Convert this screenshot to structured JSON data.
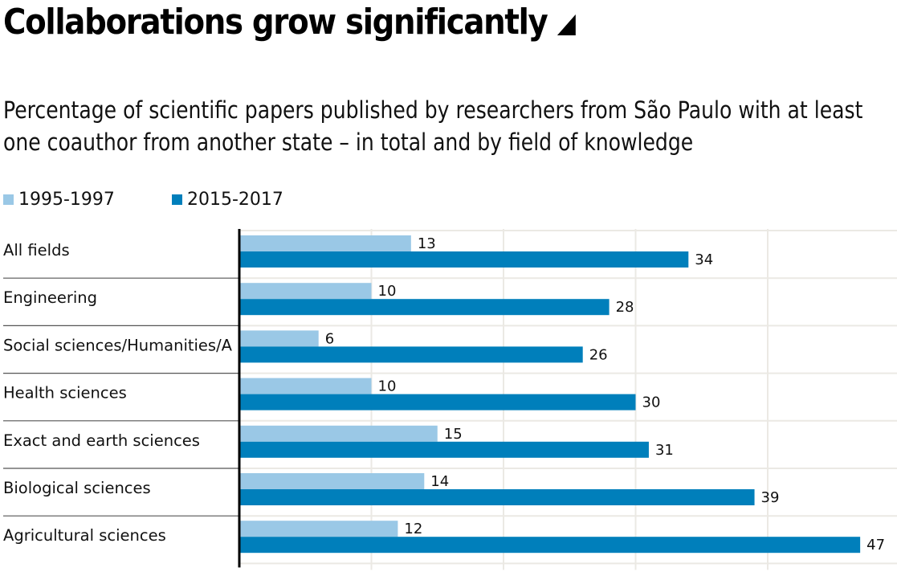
{
  "header": {
    "title": "Collaborations grow significantly",
    "subtitle": "Percentage of scientific papers published by researchers from São Paulo with at least one coauthor from another state – in total and by field of knowledge"
  },
  "colors": {
    "series_1995_1997": "#9ac8e6",
    "series_2015_2017": "#007fbb",
    "axis": "#000000",
    "grid": "#ebe9e4",
    "separator": "#555555"
  },
  "chart_data": {
    "type": "bar",
    "orientation": "horizontal",
    "title": "Collaborations grow significantly",
    "subtitle": "Percentage of scientific papers published by researchers from São Paulo with at least one coauthor from another state – in total and by field of knowledge",
    "xlabel": "",
    "ylabel": "",
    "xlim": [
      0,
      50
    ],
    "grid": true,
    "grid_step": 10,
    "legend_position": "top-left",
    "categories": [
      "All fields",
      "Engineering",
      "Social sciences/Humanities/Arts",
      "Health sciences",
      "Exact and earth sciences",
      "Biological sciences",
      "Agricultural sciences"
    ],
    "category_display": [
      "All fields",
      "Engineering",
      "Social sciences/Humanities/A",
      "Health sciences",
      "Exact and earth sciences",
      "Biological sciences",
      "Agricultural sciences"
    ],
    "series": [
      {
        "name": "1995-1997",
        "values": [
          13,
          10,
          6,
          10,
          15,
          14,
          12
        ]
      },
      {
        "name": "2015-2017",
        "values": [
          34,
          28,
          26,
          30,
          31,
          39,
          47
        ]
      }
    ]
  }
}
